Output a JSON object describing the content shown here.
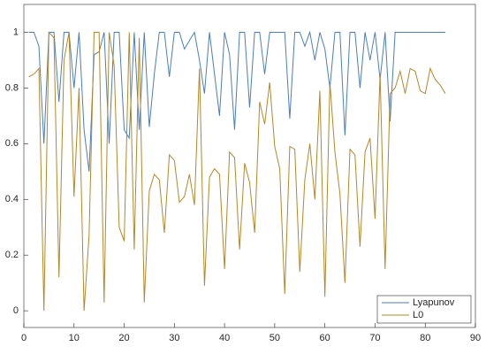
{
  "chart_data": {
    "type": "line",
    "x": [
      1,
      2,
      3,
      4,
      5,
      6,
      7,
      8,
      9,
      10,
      11,
      12,
      13,
      14,
      15,
      16,
      17,
      18,
      19,
      20,
      21,
      22,
      23,
      24,
      25,
      26,
      27,
      28,
      29,
      30,
      31,
      32,
      33,
      34,
      35,
      36,
      37,
      38,
      39,
      40,
      41,
      42,
      43,
      44,
      45,
      46,
      47,
      48,
      49,
      50,
      51,
      52,
      53,
      54,
      55,
      56,
      57,
      58,
      59,
      60,
      61,
      62,
      63,
      64,
      65,
      66,
      67,
      68,
      69,
      70,
      71,
      72,
      73,
      74,
      75,
      76,
      77,
      78,
      79,
      80,
      81,
      82,
      83,
      84
    ],
    "series": [
      {
        "name": "Lyapunov",
        "color": "#4a7ebb",
        "values": [
          1,
          1,
          0.95,
          0.6,
          1,
          1,
          0.75,
          1,
          1,
          0.8,
          1,
          0.65,
          0.5,
          0.92,
          0.93,
          1,
          0.6,
          1,
          1,
          0.65,
          0.62,
          1,
          0.65,
          1,
          0.66,
          0.85,
          1,
          1,
          0.84,
          1,
          1,
          0.94,
          0.97,
          1,
          0.9,
          0.78,
          1,
          0.85,
          0.7,
          1,
          0.92,
          0.65,
          1,
          1,
          0.73,
          1,
          1,
          0.85,
          1,
          1,
          1,
          1,
          0.69,
          1,
          1,
          0.95,
          1,
          0.9,
          1,
          0.94,
          0.8,
          1,
          1,
          0.63,
          1,
          1,
          0.8,
          1,
          0.9,
          1,
          0.83,
          1,
          0.68,
          1,
          1,
          1,
          1,
          1,
          1,
          1,
          1,
          1,
          1,
          1
        ]
      },
      {
        "name": "L0",
        "color": "#b5862a",
        "values": [
          0.84,
          0.85,
          0.87,
          0,
          1,
          0.98,
          0.12,
          0.9,
          1,
          0.41,
          0.8,
          0,
          0.27,
          1,
          1,
          0.03,
          1,
          0.88,
          0.3,
          0.25,
          1,
          0.22,
          0.98,
          0.03,
          0.43,
          0.49,
          0.47,
          0.28,
          0.56,
          0.54,
          0.39,
          0.41,
          0.49,
          0.38,
          0.87,
          0.09,
          0.48,
          0.51,
          0.49,
          0.15,
          0.57,
          0.55,
          0.22,
          0.53,
          0.46,
          0.28,
          0.75,
          0.67,
          0.82,
          0.59,
          0.51,
          0.06,
          0.59,
          0.58,
          0.14,
          0.47,
          0.6,
          0.4,
          0.79,
          0.05,
          0.82,
          0.57,
          0.42,
          0.1,
          0.58,
          0.56,
          0.23,
          0.57,
          0.62,
          0.33,
          0.85,
          0.15,
          0.78,
          0.8,
          0.86,
          0.78,
          0.87,
          0.86,
          0.79,
          0.78,
          0.87,
          0.83,
          0.81,
          0.78
        ]
      }
    ],
    "xlim": [
      0,
      90
    ],
    "xticks": [
      0,
      10,
      20,
      30,
      40,
      50,
      60,
      70,
      80,
      90
    ],
    "ylim": [
      -0.06,
      1.1
    ],
    "yticks": [
      0,
      0.2,
      0.4,
      0.6,
      0.8,
      1
    ],
    "grid": false,
    "legend": "bottom-right"
  }
}
